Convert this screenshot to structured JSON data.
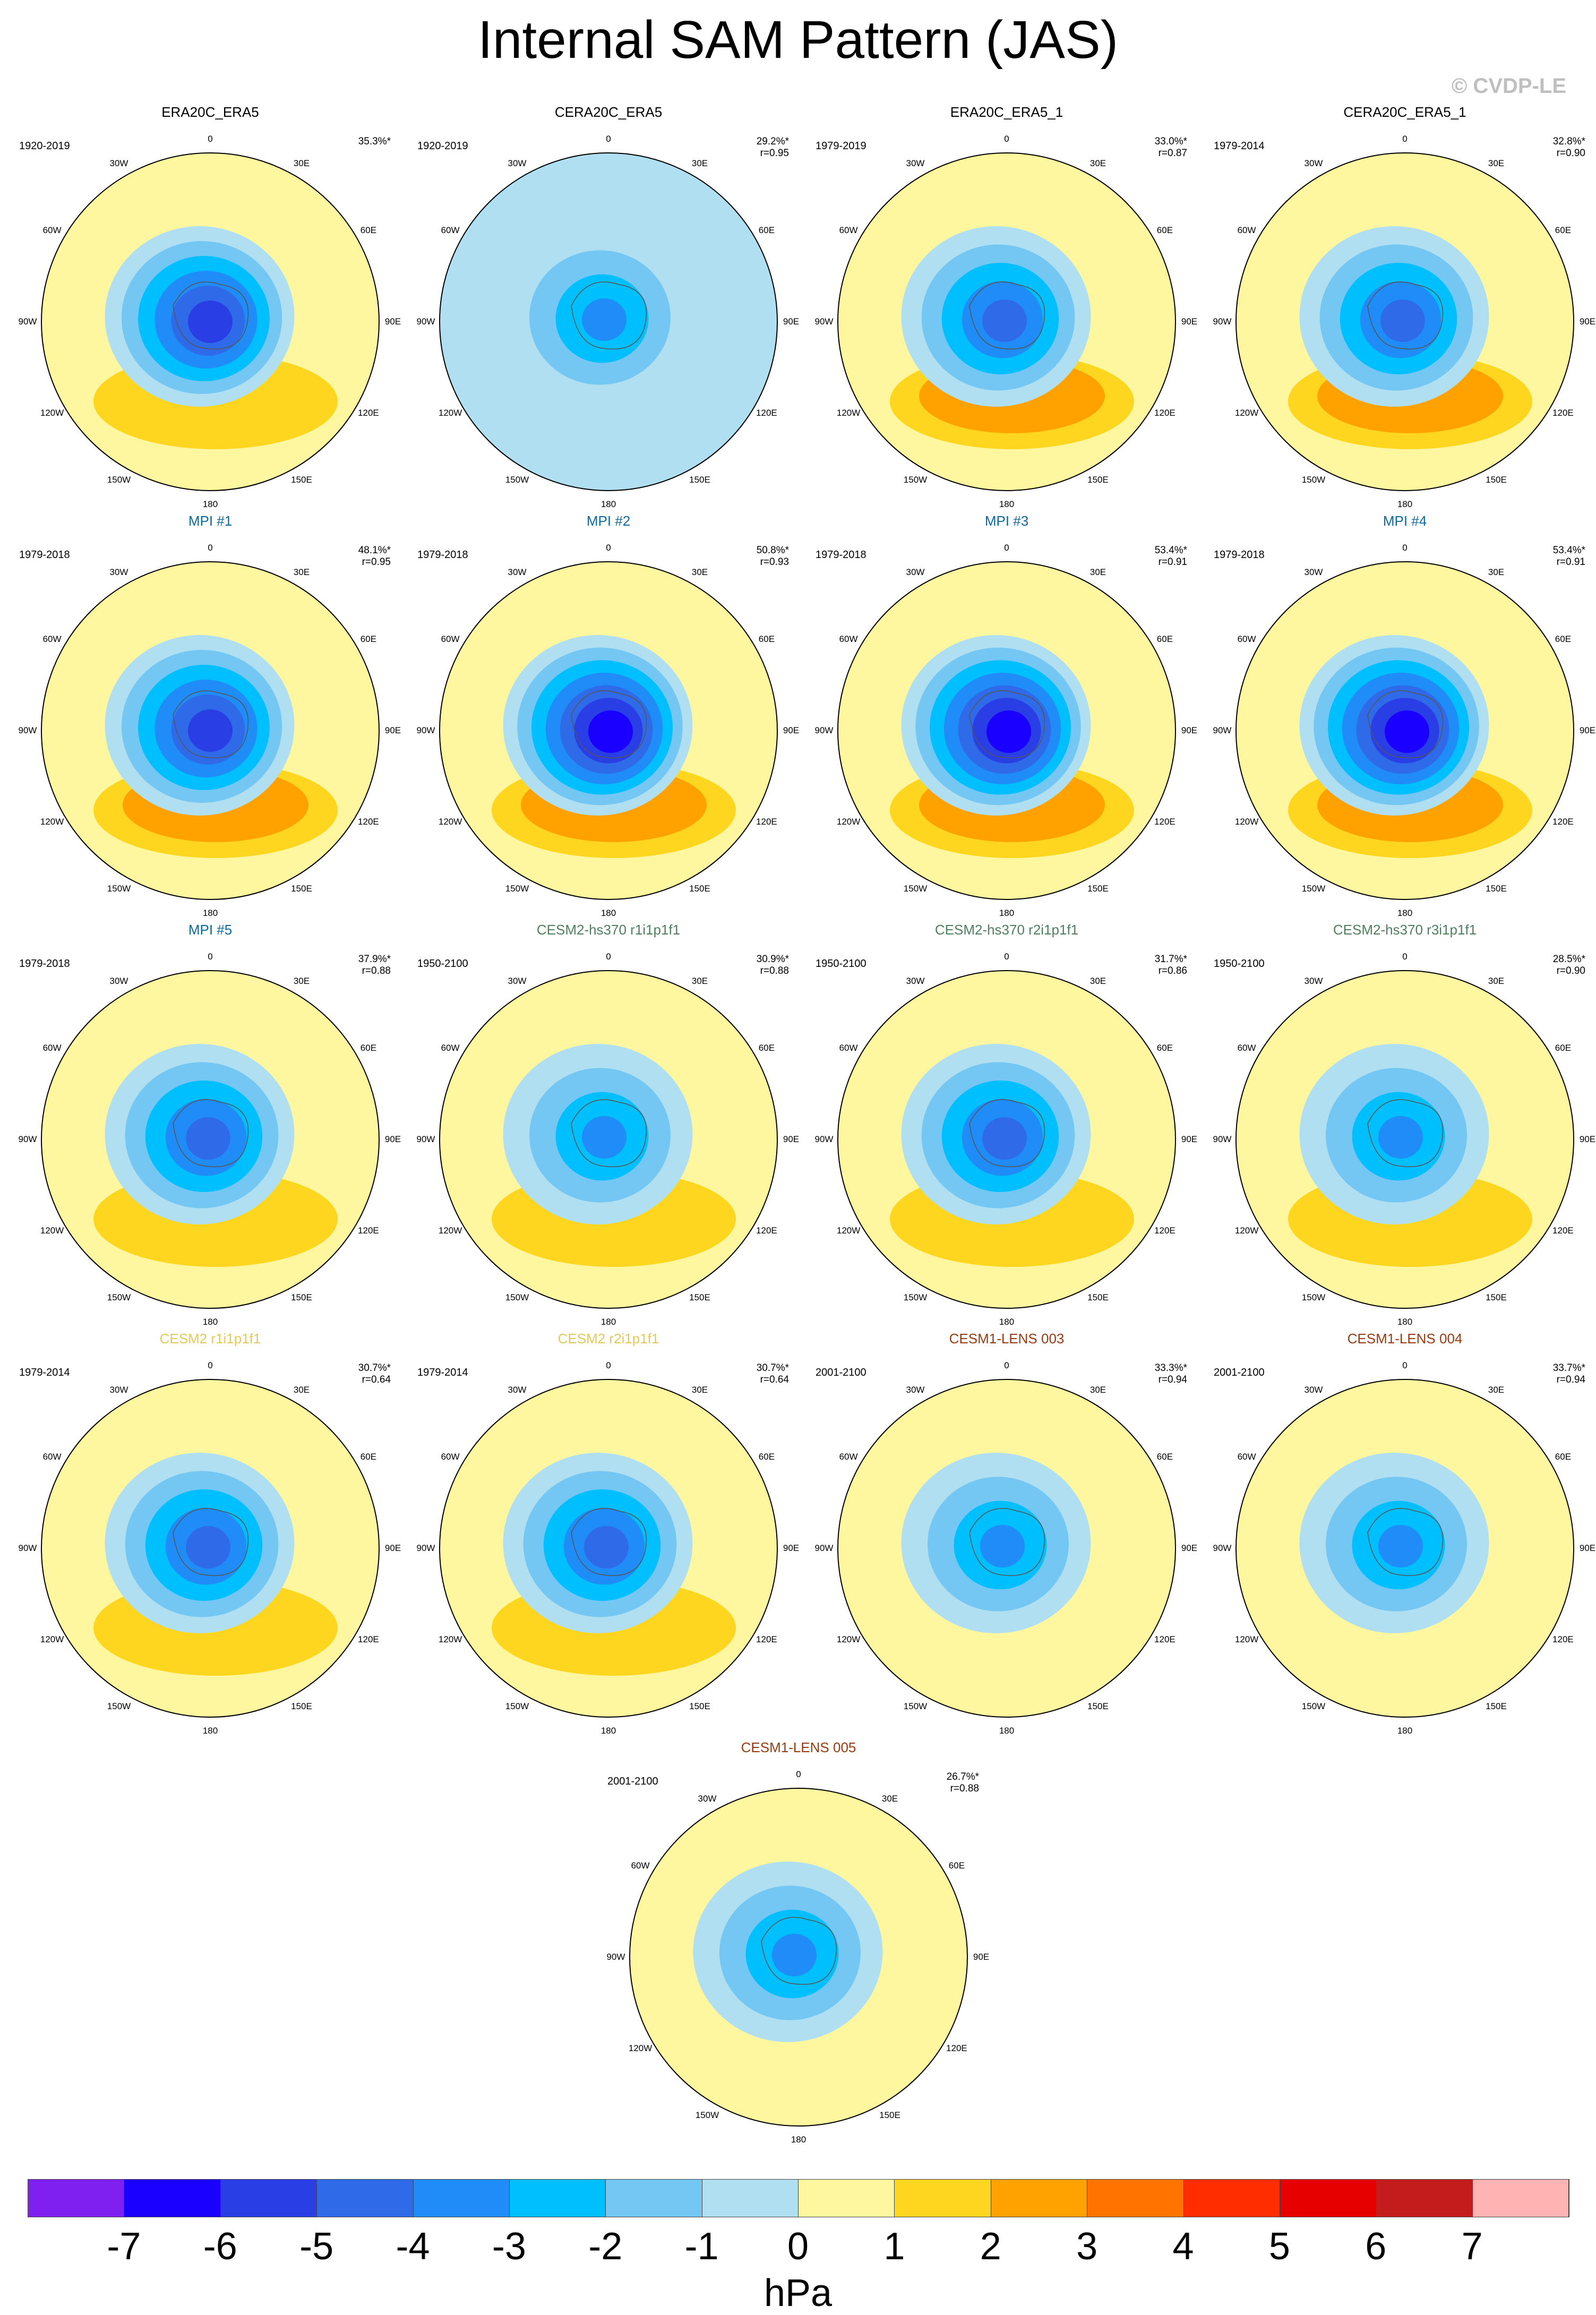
{
  "title": "Internal SAM Pattern (JAS)",
  "copyright": "© CVDP-LE",
  "colorbar": {
    "unit": "hPa",
    "colors": [
      "#7f1ff0",
      "#1a00ff",
      "#2a3ee6",
      "#2f6be8",
      "#1f8cf7",
      "#00bfff",
      "#73c7f2",
      "#b0dff2",
      "#fff7a0",
      "#ffd61f",
      "#ffa200",
      "#ff7300",
      "#ff2d00",
      "#e60000",
      "#c41c1c",
      "#ffb3b3"
    ],
    "tick_labels": [
      "-7",
      "-6",
      "-5",
      "-4",
      "-3",
      "-2",
      "-1",
      "0",
      "1",
      "2",
      "3",
      "4",
      "5",
      "6",
      "7"
    ]
  },
  "lon_labels": [
    "0",
    "30E",
    "60E",
    "90E",
    "120E",
    "150E",
    "180",
    "150W",
    "120W",
    "90W",
    "60W",
    "30W"
  ],
  "chart_data": [
    {
      "type": "heatmap",
      "title": "ERA20C_ERA5",
      "title_color": "#000000",
      "period": "1920-2019",
      "pct_variance": "35.3%*",
      "pattern_corr": "",
      "min_hpa": -5,
      "max_hpa": 2
    },
    {
      "type": "heatmap",
      "title": "CERA20C_ERA5",
      "title_color": "#000000",
      "period": "1920-2019",
      "pct_variance": "29.2%*",
      "pattern_corr": "r=0.95",
      "min_hpa": -3,
      "max_hpa": 1
    },
    {
      "type": "heatmap",
      "title": "ERA20C_ERA5_1",
      "title_color": "#000000",
      "period": "1979-2019",
      "pct_variance": "33.0%*",
      "pattern_corr": "r=0.87",
      "min_hpa": -4,
      "max_hpa": 3
    },
    {
      "type": "heatmap",
      "title": "CERA20C_ERA5_1",
      "title_color": "#000000",
      "period": "1979-2014",
      "pct_variance": "32.8%*",
      "pattern_corr": "r=0.90",
      "min_hpa": -4,
      "max_hpa": 3
    },
    {
      "type": "heatmap",
      "title": "MPI #1",
      "title_color": "#0e6a9e",
      "period": "1979-2018",
      "pct_variance": "48.1%*",
      "pattern_corr": "r=0.95",
      "min_hpa": -5,
      "max_hpa": 3
    },
    {
      "type": "heatmap",
      "title": "MPI #2",
      "title_color": "#0e6a9e",
      "period": "1979-2018",
      "pct_variance": "50.8%*",
      "pattern_corr": "r=0.93",
      "min_hpa": -6,
      "max_hpa": 3
    },
    {
      "type": "heatmap",
      "title": "MPI #3",
      "title_color": "#0e6a9e",
      "period": "1979-2018",
      "pct_variance": "53.4%*",
      "pattern_corr": "r=0.91",
      "min_hpa": -6,
      "max_hpa": 3
    },
    {
      "type": "heatmap",
      "title": "MPI #4",
      "title_color": "#0e6a9e",
      "period": "1979-2018",
      "pct_variance": "53.4%*",
      "pattern_corr": "r=0.91",
      "min_hpa": -6,
      "max_hpa": 3
    },
    {
      "type": "heatmap",
      "title": "MPI #5",
      "title_color": "#0e6a9e",
      "period": "1979-2018",
      "pct_variance": "37.9%*",
      "pattern_corr": "r=0.88",
      "min_hpa": -4,
      "max_hpa": 2
    },
    {
      "type": "heatmap",
      "title": "CESM2-hs370 r1i1p1f1",
      "title_color": "#4f7f5f",
      "period": "1950-2100",
      "pct_variance": "30.9%*",
      "pattern_corr": "r=0.88",
      "min_hpa": -3,
      "max_hpa": 2
    },
    {
      "type": "heatmap",
      "title": "CESM2-hs370 r2i1p1f1",
      "title_color": "#4f7f5f",
      "period": "1950-2100",
      "pct_variance": "31.7%*",
      "pattern_corr": "r=0.86",
      "min_hpa": -4,
      "max_hpa": 2
    },
    {
      "type": "heatmap",
      "title": "CESM2-hs370 r3i1p1f1",
      "title_color": "#4f7f5f",
      "period": "1950-2100",
      "pct_variance": "28.5%*",
      "pattern_corr": "r=0.90",
      "min_hpa": -3,
      "max_hpa": 2
    },
    {
      "type": "heatmap",
      "title": "CESM2 r1i1p1f1",
      "title_color": "#e3c95a",
      "period": "1979-2014",
      "pct_variance": "30.7%*",
      "pattern_corr": "r=0.64",
      "min_hpa": -4,
      "max_hpa": 2
    },
    {
      "type": "heatmap",
      "title": "CESM2 r2i1p1f1",
      "title_color": "#e3c95a",
      "period": "1979-2014",
      "pct_variance": "30.7%*",
      "pattern_corr": "r=0.64",
      "min_hpa": -4,
      "max_hpa": 2
    },
    {
      "type": "heatmap",
      "title": "CESM1-LENS 003",
      "title_color": "#9a3b12",
      "period": "2001-2100",
      "pct_variance": "33.3%*",
      "pattern_corr": "r=0.94",
      "min_hpa": -3,
      "max_hpa": 1
    },
    {
      "type": "heatmap",
      "title": "CESM1-LENS 004",
      "title_color": "#9a3b12",
      "period": "2001-2100",
      "pct_variance": "33.7%*",
      "pattern_corr": "r=0.94",
      "min_hpa": -3,
      "max_hpa": 1
    },
    {
      "type": "heatmap",
      "title": "CESM1-LENS 005",
      "title_color": "#9a3b12",
      "period": "2001-2100",
      "pct_variance": "26.7%*",
      "pattern_corr": "r=0.88",
      "min_hpa": -3,
      "max_hpa": 1
    }
  ]
}
